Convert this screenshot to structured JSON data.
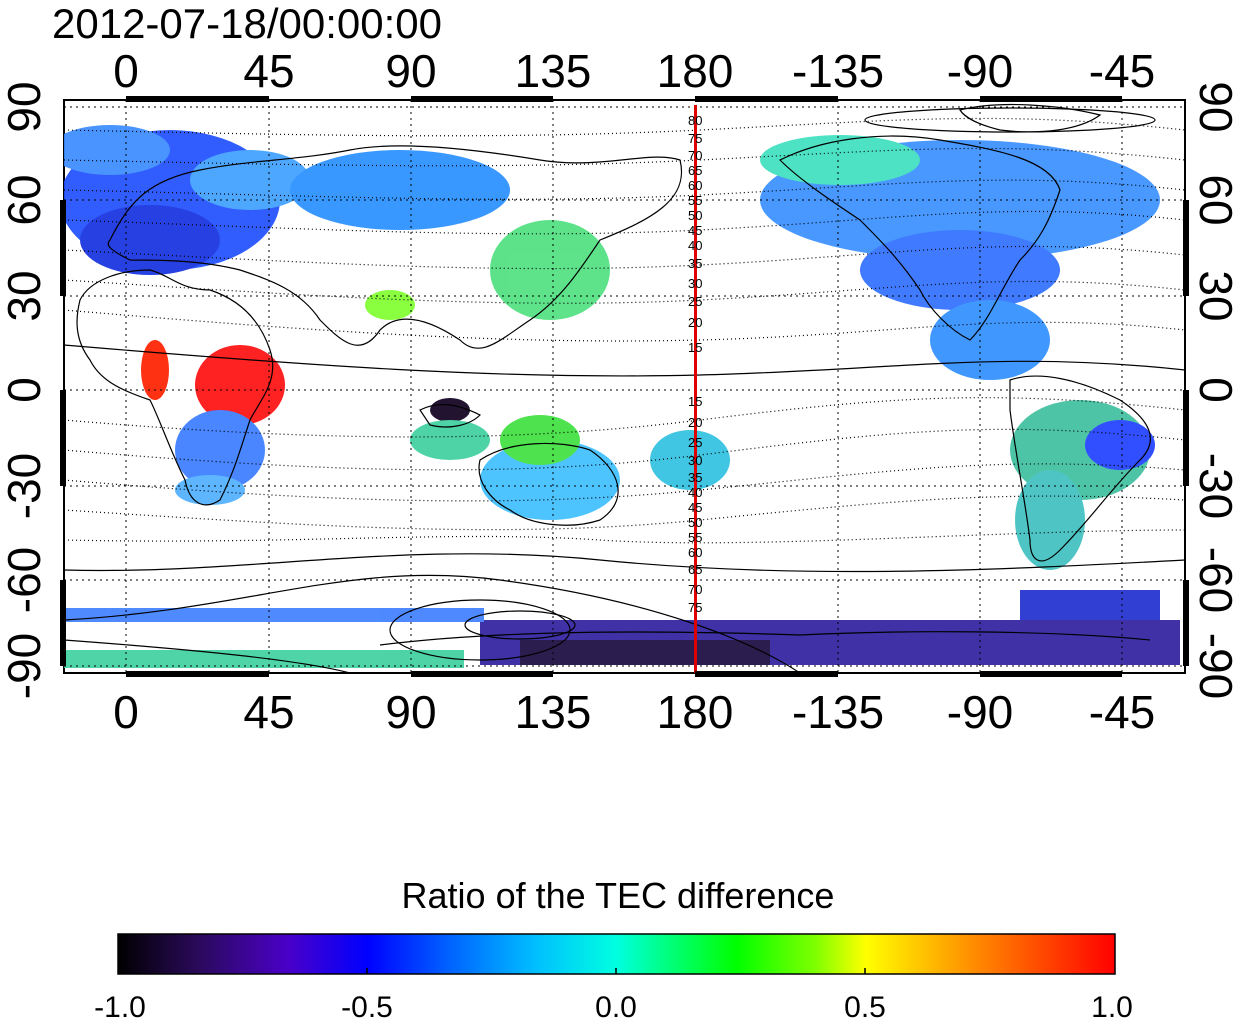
{
  "title": "2012-07-18/00:00:00",
  "map": {
    "top_lon_labels": [
      "0",
      "45",
      "90",
      "135",
      "180",
      "-135",
      "-90",
      "-45"
    ],
    "bottom_lon_labels": [
      "0",
      "45",
      "90",
      "135",
      "180",
      "-135",
      "-90",
      "-45"
    ],
    "left_lat_labels": [
      "90",
      "60",
      "30",
      "0",
      "-30",
      "-60",
      "-90"
    ],
    "right_lat_labels": [
      "90",
      "60",
      "30",
      "0",
      "-30",
      "-60",
      "-90"
    ],
    "meridian_marker_color": "#e00000",
    "contour_labels_north": [
      "80",
      "75",
      "70",
      "65",
      "60",
      "55",
      "50",
      "45",
      "40",
      "35",
      "30",
      "25",
      "20",
      "15"
    ],
    "contour_labels_south": [
      "15",
      "20",
      "25",
      "30",
      "35",
      "40",
      "45",
      "50",
      "55",
      "60",
      "65",
      "70",
      "75"
    ]
  },
  "colorbar": {
    "title": "Ratio of the TEC difference",
    "ticks": [
      "-1.0",
      "-0.5",
      "0.0",
      "0.5",
      "1.0"
    ],
    "min": -1.0,
    "max": 1.0,
    "colors": [
      "#000000",
      "#2a0a5a",
      "#4a00c8",
      "#0000ff",
      "#0060ff",
      "#00c0ff",
      "#00ffe0",
      "#00ff80",
      "#00ff00",
      "#80ff00",
      "#ffff00",
      "#ff8000",
      "#ff0000"
    ]
  }
}
